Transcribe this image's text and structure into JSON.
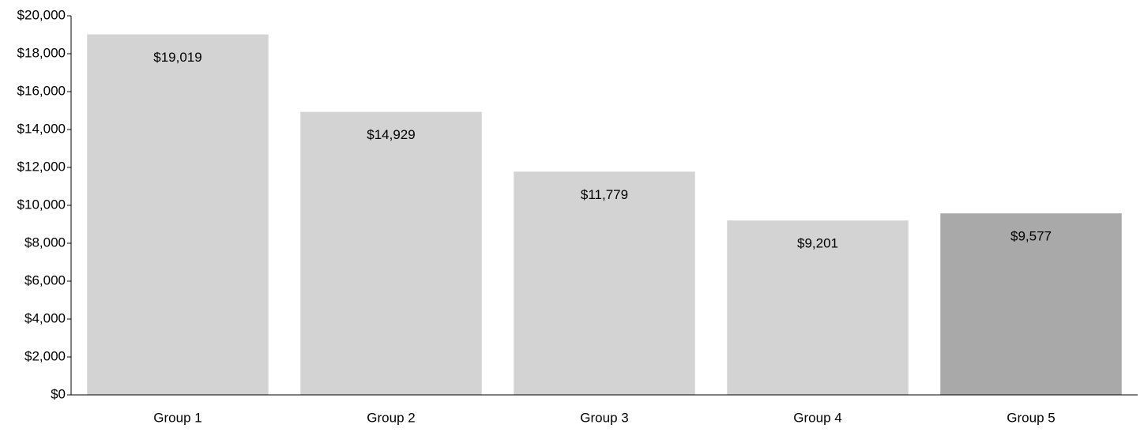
{
  "chart_data": {
    "type": "bar",
    "categories": [
      "Group 1",
      "Group 2",
      "Group 3",
      "Group 4",
      "Group 5"
    ],
    "values": [
      19019,
      14929,
      11779,
      9201,
      9577
    ],
    "value_labels": [
      "$19,019",
      "$14,929",
      "$11,779",
      "$9,201",
      "$9,577"
    ],
    "title": "",
    "xlabel": "",
    "ylabel": "",
    "ylim": [
      0,
      20000
    ],
    "yticks": [
      0,
      2000,
      4000,
      6000,
      8000,
      10000,
      12000,
      14000,
      16000,
      18000,
      20000
    ],
    "ytick_labels": [
      "$0",
      "$2,000",
      "$4,000",
      "$6,000",
      "$8,000",
      "$10,000",
      "$12,000",
      "$14,000",
      "$16,000",
      "$18,000",
      "$20,000"
    ],
    "grid": false,
    "legend": "none",
    "colors": {
      "default_bar": "#d3d3d3",
      "highlight_bar": "#a9a9a9",
      "highlight_index": 4,
      "axis": "#000000",
      "text": "#000000"
    }
  }
}
